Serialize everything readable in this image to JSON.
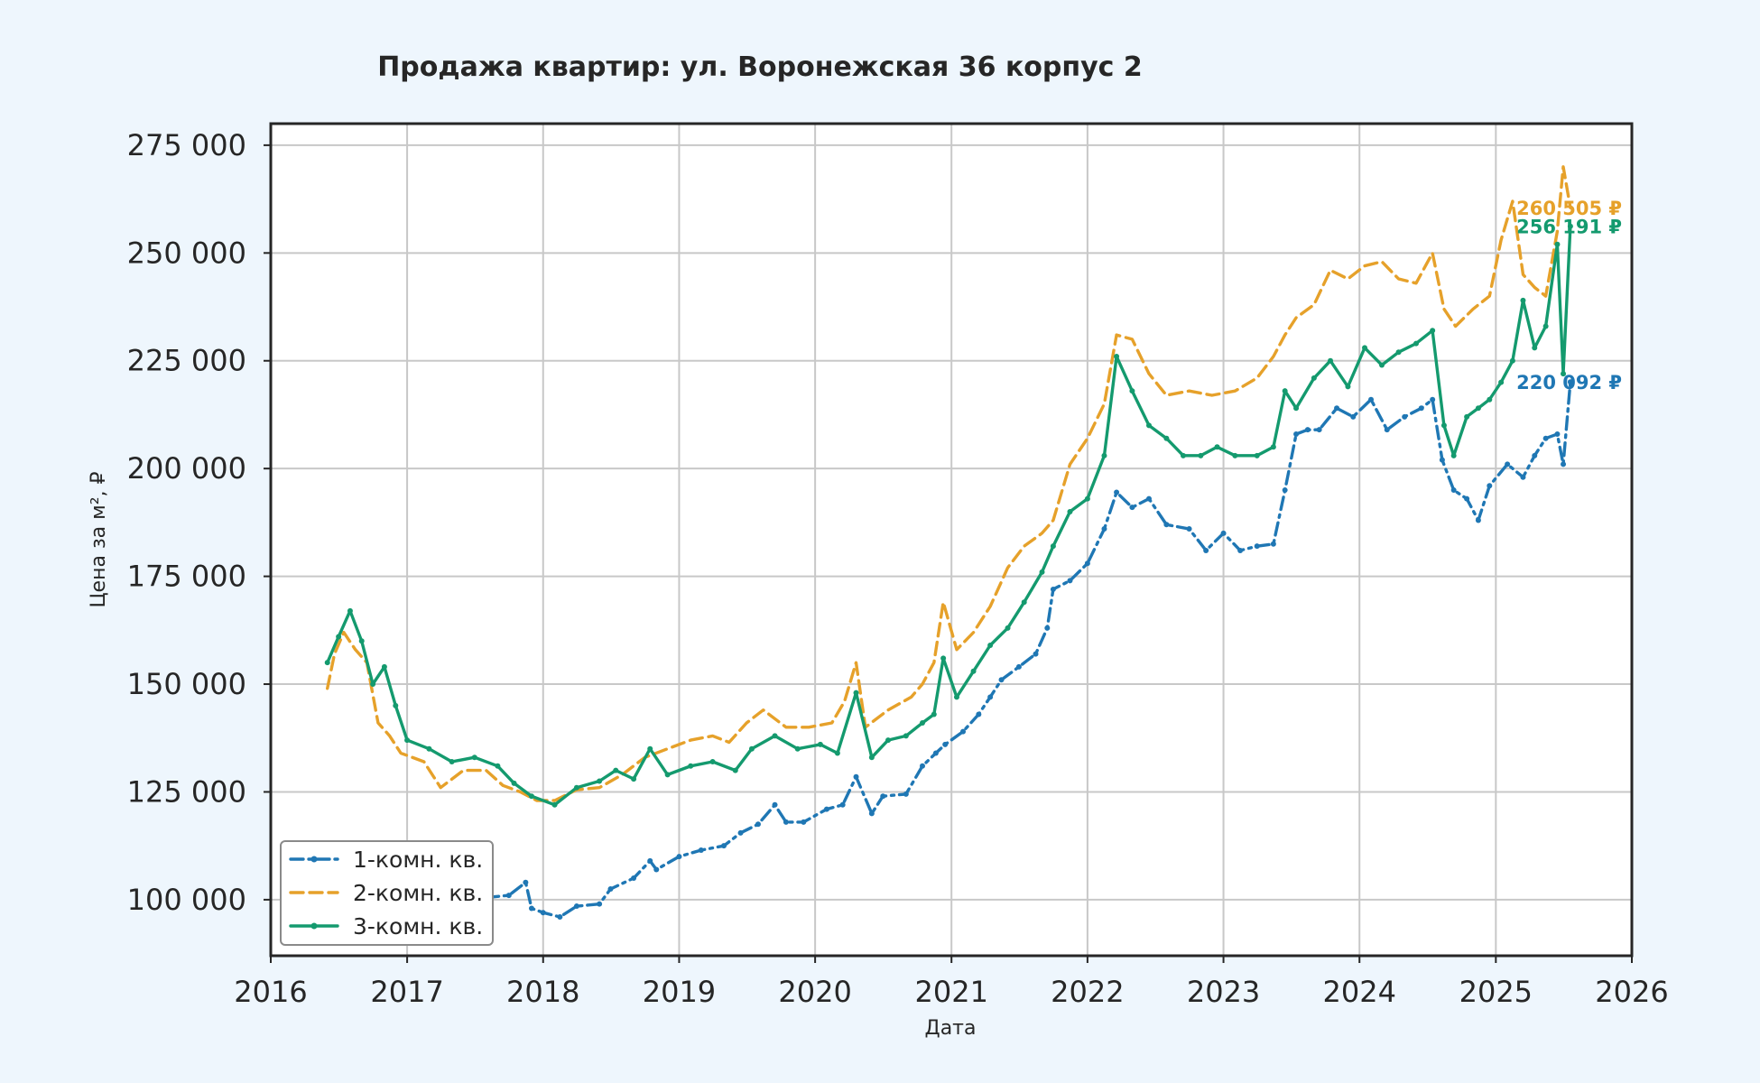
{
  "chart_data": {
    "type": "line",
    "title": "Продажа квартир: ул. Воронежская 36 корпус 2",
    "xlabel": "Дата",
    "ylabel": "Цена за м², ₽",
    "xlim": [
      "2016-01-01",
      "2026-01-01"
    ],
    "ylim": [
      87000,
      280000
    ],
    "grid": true,
    "legend_position": "lower-left",
    "x_ticks": [
      "2016",
      "2017",
      "2018",
      "2019",
      "2020",
      "2021",
      "2022",
      "2023",
      "2024",
      "2025",
      "2026"
    ],
    "y_ticks": [
      100000,
      125000,
      150000,
      175000,
      200000,
      225000,
      250000,
      275000
    ],
    "y_tick_labels": [
      "100 000",
      "125 000",
      "150 000",
      "175 000",
      "200 000",
      "225 000",
      "250 000",
      "275 000"
    ],
    "series": [
      {
        "name": "1-комн. кв.",
        "color": "#1f77b4",
        "style": "dashdot",
        "end_label": "220 092 ₽",
        "points": [
          [
            "2017-08-01",
            100500
          ],
          [
            "2017-10-01",
            101000
          ],
          [
            "2017-11-15",
            104000
          ],
          [
            "2017-12-01",
            98000
          ],
          [
            "2018-01-01",
            97000
          ],
          [
            "2018-02-15",
            96000
          ],
          [
            "2018-04-01",
            98500
          ],
          [
            "2018-06-01",
            99000
          ],
          [
            "2018-07-01",
            102500
          ],
          [
            "2018-09-01",
            105000
          ],
          [
            "2018-10-15",
            109000
          ],
          [
            "2018-11-01",
            107000
          ],
          [
            "2019-01-01",
            110000
          ],
          [
            "2019-03-01",
            111500
          ],
          [
            "2019-05-01",
            112500
          ],
          [
            "2019-06-15",
            115500
          ],
          [
            "2019-08-01",
            117500
          ],
          [
            "2019-09-15",
            122000
          ],
          [
            "2019-10-15",
            118000
          ],
          [
            "2019-12-01",
            118000
          ],
          [
            "2020-02-01",
            121000
          ],
          [
            "2020-03-15",
            122000
          ],
          [
            "2020-04-20",
            128500
          ],
          [
            "2020-06-01",
            120000
          ],
          [
            "2020-07-01",
            124000
          ],
          [
            "2020-09-01",
            124500
          ],
          [
            "2020-10-15",
            131000
          ],
          [
            "2020-11-20",
            134000
          ],
          [
            "2020-12-15",
            136000
          ],
          [
            "2021-02-01",
            139000
          ],
          [
            "2021-03-15",
            143000
          ],
          [
            "2021-04-15",
            147000
          ],
          [
            "2021-05-15",
            151000
          ],
          [
            "2021-07-01",
            154000
          ],
          [
            "2021-08-15",
            157000
          ],
          [
            "2021-09-15",
            163000
          ],
          [
            "2021-10-01",
            172000
          ],
          [
            "2021-11-15",
            174000
          ],
          [
            "2022-01-01",
            178000
          ],
          [
            "2022-02-15",
            186000
          ],
          [
            "2022-03-20",
            194500
          ],
          [
            "2022-05-01",
            191000
          ],
          [
            "2022-06-15",
            193000
          ],
          [
            "2022-08-01",
            187000
          ],
          [
            "2022-10-01",
            186000
          ],
          [
            "2022-11-15",
            181000
          ],
          [
            "2023-01-01",
            185000
          ],
          [
            "2023-02-15",
            181000
          ],
          [
            "2023-04-01",
            182000
          ],
          [
            "2023-05-15",
            182500
          ],
          [
            "2023-06-15",
            195000
          ],
          [
            "2023-07-15",
            208000
          ],
          [
            "2023-08-15",
            209000
          ],
          [
            "2023-09-15",
            209000
          ],
          [
            "2023-11-01",
            214000
          ],
          [
            "2023-12-15",
            212000
          ],
          [
            "2024-02-01",
            216000
          ],
          [
            "2024-03-15",
            209000
          ],
          [
            "2024-05-01",
            212000
          ],
          [
            "2024-06-15",
            214000
          ],
          [
            "2024-07-15",
            216000
          ],
          [
            "2024-08-10",
            202000
          ],
          [
            "2024-09-10",
            195000
          ],
          [
            "2024-10-15",
            193000
          ],
          [
            "2024-11-15",
            188000
          ],
          [
            "2024-12-15",
            196000
          ],
          [
            "2025-02-01",
            201000
          ],
          [
            "2025-03-15",
            198000
          ],
          [
            "2025-04-15",
            203000
          ],
          [
            "2025-05-15",
            207000
          ],
          [
            "2025-06-15",
            208000
          ],
          [
            "2025-07-01",
            201000
          ],
          [
            "2025-07-20",
            220092
          ]
        ]
      },
      {
        "name": "2-комн. кв.",
        "color": "#e6a12a",
        "style": "dashed",
        "end_label": "260 505 ₽",
        "points": [
          [
            "2016-06-01",
            149000
          ],
          [
            "2016-06-20",
            157000
          ],
          [
            "2016-07-15",
            162000
          ],
          [
            "2016-08-15",
            158000
          ],
          [
            "2016-09-15",
            155000
          ],
          [
            "2016-10-15",
            141000
          ],
          [
            "2016-11-15",
            138000
          ],
          [
            "2016-12-15",
            134000
          ],
          [
            "2017-02-15",
            132000
          ],
          [
            "2017-04-01",
            126000
          ],
          [
            "2017-06-01",
            130000
          ],
          [
            "2017-08-01",
            130000
          ],
          [
            "2017-09-15",
            126500
          ],
          [
            "2017-11-01",
            125000
          ],
          [
            "2017-12-15",
            123000
          ],
          [
            "2018-02-01",
            123000
          ],
          [
            "2018-04-01",
            125500
          ],
          [
            "2018-06-01",
            126000
          ],
          [
            "2018-08-01",
            129000
          ],
          [
            "2018-10-01",
            133000
          ],
          [
            "2018-12-01",
            135000
          ],
          [
            "2019-02-01",
            137000
          ],
          [
            "2019-04-01",
            138000
          ],
          [
            "2019-05-15",
            136500
          ],
          [
            "2019-07-01",
            141000
          ],
          [
            "2019-08-15",
            144000
          ],
          [
            "2019-10-15",
            140000
          ],
          [
            "2019-12-15",
            140000
          ],
          [
            "2020-02-15",
            141000
          ],
          [
            "2020-03-20",
            146000
          ],
          [
            "2020-04-20",
            155000
          ],
          [
            "2020-05-15",
            140000
          ],
          [
            "2020-07-15",
            144000
          ],
          [
            "2020-09-15",
            147000
          ],
          [
            "2020-10-15",
            150000
          ],
          [
            "2020-11-15",
            155000
          ],
          [
            "2020-12-10",
            169000
          ],
          [
            "2021-01-15",
            158000
          ],
          [
            "2021-03-01",
            162000
          ],
          [
            "2021-04-15",
            168000
          ],
          [
            "2021-06-01",
            177000
          ],
          [
            "2021-07-15",
            182000
          ],
          [
            "2021-09-01",
            185000
          ],
          [
            "2021-10-01",
            188000
          ],
          [
            "2021-11-15",
            201000
          ],
          [
            "2022-01-01",
            207000
          ],
          [
            "2022-02-15",
            215000
          ],
          [
            "2022-03-20",
            231000
          ],
          [
            "2022-05-01",
            230000
          ],
          [
            "2022-06-15",
            222000
          ],
          [
            "2022-08-01",
            217000
          ],
          [
            "2022-10-01",
            218000
          ],
          [
            "2022-12-01",
            217000
          ],
          [
            "2023-02-01",
            218000
          ],
          [
            "2023-04-01",
            221000
          ],
          [
            "2023-05-15",
            226000
          ],
          [
            "2023-06-15",
            231000
          ],
          [
            "2023-07-15",
            235000
          ],
          [
            "2023-09-01",
            238000
          ],
          [
            "2023-10-15",
            246000
          ],
          [
            "2023-12-01",
            244000
          ],
          [
            "2024-01-15",
            247000
          ],
          [
            "2024-03-01",
            248000
          ],
          [
            "2024-04-15",
            244000
          ],
          [
            "2024-06-01",
            243000
          ],
          [
            "2024-07-15",
            250000
          ],
          [
            "2024-08-15",
            237000
          ],
          [
            "2024-09-15",
            233000
          ],
          [
            "2024-11-01",
            237000
          ],
          [
            "2024-12-15",
            240000
          ],
          [
            "2025-01-15",
            253000
          ],
          [
            "2025-02-15",
            262000
          ],
          [
            "2025-03-15",
            245000
          ],
          [
            "2025-04-15",
            242000
          ],
          [
            "2025-05-15",
            240000
          ],
          [
            "2025-06-15",
            255000
          ],
          [
            "2025-07-01",
            270000
          ],
          [
            "2025-07-20",
            260505
          ]
        ]
      },
      {
        "name": "3-комн. кв.",
        "color": "#149a6e",
        "style": "solid",
        "end_label": "256 191 ₽",
        "points": [
          [
            "2016-06-01",
            155000
          ],
          [
            "2016-07-01",
            161000
          ],
          [
            "2016-08-01",
            167000
          ],
          [
            "2016-09-01",
            160000
          ],
          [
            "2016-10-01",
            150000
          ],
          [
            "2016-11-01",
            154000
          ],
          [
            "2016-12-01",
            145000
          ],
          [
            "2017-01-01",
            137000
          ],
          [
            "2017-03-01",
            135000
          ],
          [
            "2017-05-01",
            132000
          ],
          [
            "2017-07-01",
            133000
          ],
          [
            "2017-09-01",
            131000
          ],
          [
            "2017-10-15",
            127000
          ],
          [
            "2017-12-01",
            124000
          ],
          [
            "2018-02-01",
            122000
          ],
          [
            "2018-04-01",
            126000
          ],
          [
            "2018-06-01",
            127500
          ],
          [
            "2018-07-15",
            130000
          ],
          [
            "2018-09-01",
            128000
          ],
          [
            "2018-10-15",
            135000
          ],
          [
            "2018-12-01",
            129000
          ],
          [
            "2019-02-01",
            131000
          ],
          [
            "2019-04-01",
            132000
          ],
          [
            "2019-06-01",
            130000
          ],
          [
            "2019-07-15",
            135000
          ],
          [
            "2019-09-15",
            138000
          ],
          [
            "2019-11-15",
            135000
          ],
          [
            "2020-01-15",
            136000
          ],
          [
            "2020-03-01",
            134000
          ],
          [
            "2020-04-20",
            148000
          ],
          [
            "2020-06-01",
            133000
          ],
          [
            "2020-07-15",
            137000
          ],
          [
            "2020-09-01",
            138000
          ],
          [
            "2020-10-15",
            141000
          ],
          [
            "2020-11-15",
            143000
          ],
          [
            "2020-12-10",
            156000
          ],
          [
            "2021-01-15",
            147000
          ],
          [
            "2021-03-01",
            153000
          ],
          [
            "2021-04-15",
            159000
          ],
          [
            "2021-06-01",
            163000
          ],
          [
            "2021-07-15",
            169000
          ],
          [
            "2021-09-01",
            176000
          ],
          [
            "2021-10-01",
            182000
          ],
          [
            "2021-11-15",
            190000
          ],
          [
            "2022-01-01",
            193000
          ],
          [
            "2022-02-15",
            203000
          ],
          [
            "2022-03-20",
            226000
          ],
          [
            "2022-05-01",
            218000
          ],
          [
            "2022-06-15",
            210000
          ],
          [
            "2022-08-01",
            207000
          ],
          [
            "2022-09-15",
            203000
          ],
          [
            "2022-11-01",
            203000
          ],
          [
            "2022-12-15",
            205000
          ],
          [
            "2023-02-01",
            203000
          ],
          [
            "2023-04-01",
            203000
          ],
          [
            "2023-05-15",
            205000
          ],
          [
            "2023-06-15",
            218000
          ],
          [
            "2023-07-15",
            214000
          ],
          [
            "2023-09-01",
            221000
          ],
          [
            "2023-10-15",
            225000
          ],
          [
            "2023-12-01",
            219000
          ],
          [
            "2024-01-15",
            228000
          ],
          [
            "2024-03-01",
            224000
          ],
          [
            "2024-04-15",
            227000
          ],
          [
            "2024-06-01",
            229000
          ],
          [
            "2024-07-15",
            232000
          ],
          [
            "2024-08-15",
            210000
          ],
          [
            "2024-09-10",
            203000
          ],
          [
            "2024-10-15",
            212000
          ],
          [
            "2024-11-15",
            214000
          ],
          [
            "2024-12-15",
            216000
          ],
          [
            "2025-01-15",
            220000
          ],
          [
            "2025-02-15",
            225000
          ],
          [
            "2025-03-15",
            239000
          ],
          [
            "2025-04-15",
            228000
          ],
          [
            "2025-05-15",
            233000
          ],
          [
            "2025-06-15",
            252000
          ],
          [
            "2025-07-01",
            222000
          ],
          [
            "2025-07-20",
            256191
          ]
        ]
      }
    ]
  }
}
